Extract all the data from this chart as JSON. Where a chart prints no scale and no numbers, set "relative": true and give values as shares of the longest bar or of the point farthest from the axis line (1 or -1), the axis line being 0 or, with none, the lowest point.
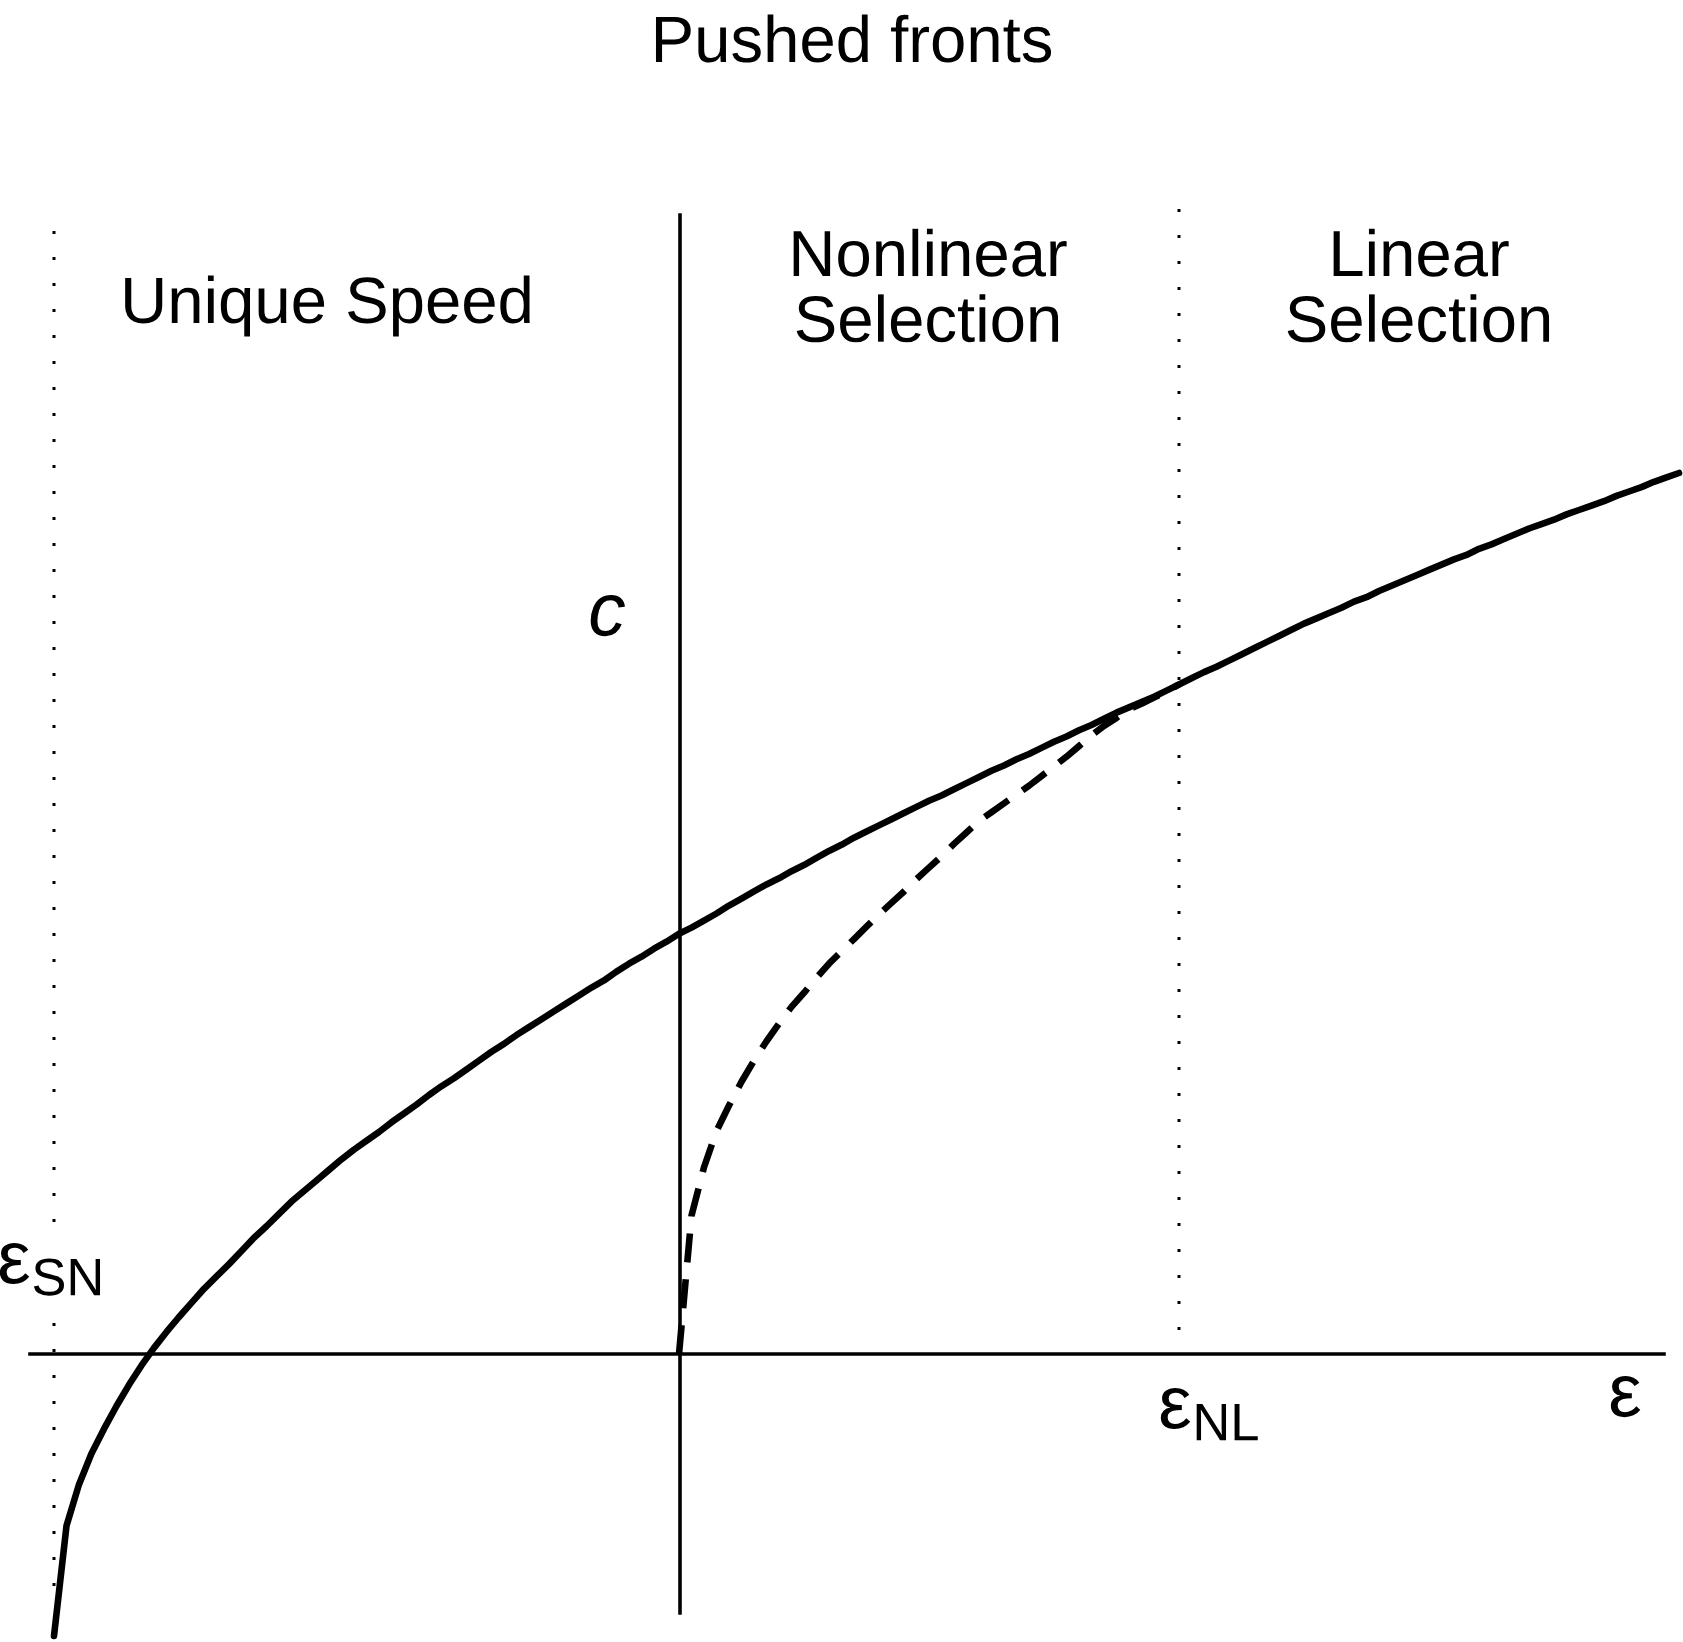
{
  "chart_data": {
    "type": "line",
    "title": "Pushed fronts",
    "xlabel": "ε",
    "ylabel": "c",
    "relative": true,
    "categories": [
      null,
      null,
      null,
      null,
      null,
      null,
      null,
      null,
      null,
      null,
      null,
      null,
      null,
      null,
      null,
      null,
      null,
      null,
      null,
      null,
      null,
      null,
      null,
      null,
      null,
      null,
      null,
      null,
      null,
      null,
      null,
      null,
      null,
      null,
      null,
      null,
      null,
      null,
      null,
      null,
      null,
      null,
      null,
      null,
      null,
      null,
      null,
      null,
      null,
      null,
      null,
      null,
      null,
      null,
      null,
      null,
      null,
      null,
      null,
      null,
      null,
      null,
      null,
      null,
      null,
      null,
      null,
      null,
      null,
      null,
      null,
      null,
      null,
      null,
      null,
      null,
      null,
      null,
      null,
      null,
      null,
      null,
      null,
      null,
      null,
      null,
      null,
      null,
      null,
      null,
      null,
      null,
      null,
      null,
      null,
      null,
      null,
      null,
      null,
      null,
      null,
      null,
      null,
      null,
      null,
      null,
      null,
      null,
      null,
      null,
      null,
      null,
      null,
      null,
      null,
      null,
      null,
      null,
      null,
      null,
      null,
      null,
      null,
      null,
      null,
      null,
      null,
      null,
      null,
      null,
      null
    ],
    "series": [
      {
        "color": "#000000",
        "line_style": "solid",
        "values": [
          -0.32,
          -0.195,
          -0.148,
          -0.113,
          -0.085,
          -0.059,
          -0.035,
          -0.013,
          0.007,
          0.025,
          0.042,
          0.058,
          0.074,
          0.088,
          0.102,
          0.117,
          0.132,
          0.145,
          0.159,
          0.173,
          0.185,
          0.197,
          0.209,
          0.221,
          0.232,
          0.242,
          0.252,
          0.263,
          0.273,
          0.283,
          0.294,
          0.304,
          0.313,
          0.323,
          0.333,
          0.343,
          0.352,
          0.362,
          0.371,
          0.38,
          0.389,
          0.398,
          0.407,
          0.416,
          0.424,
          0.434,
          0.443,
          0.451,
          0.46,
          0.468,
          0.477,
          0.484,
          0.492,
          0.5,
          0.509,
          0.517,
          0.525,
          0.533,
          0.54,
          0.548,
          0.555,
          0.563,
          0.571,
          0.578,
          0.586,
          0.593,
          0.6,
          0.607,
          0.614,
          0.621,
          0.628,
          0.634,
          0.641,
          0.648,
          0.655,
          0.662,
          0.668,
          0.675,
          0.681,
          0.688,
          0.695,
          0.701,
          0.708,
          0.714,
          0.721,
          0.728,
          0.734,
          0.74,
          0.746,
          0.753,
          0.76,
          0.767,
          0.774,
          0.78,
          0.787,
          0.794,
          0.801,
          0.808,
          0.815,
          0.822,
          0.829,
          0.835,
          0.841,
          0.847,
          0.854,
          0.859,
          0.866,
          0.872,
          0.878,
          0.884,
          0.89,
          0.896,
          0.902,
          0.907,
          0.914,
          0.919,
          0.925,
          0.931,
          0.937,
          0.942,
          0.947,
          0.953,
          0.958,
          0.963,
          0.968,
          0.974,
          0.979,
          0.984,
          0.99,
          0.995,
          1.0
        ]
      },
      {
        "color": "#000000",
        "line_style": "dashed",
        "values": [
          null,
          null,
          null,
          null,
          null,
          null,
          null,
          null,
          null,
          null,
          null,
          null,
          null,
          null,
          null,
          null,
          null,
          null,
          null,
          null,
          null,
          null,
          null,
          null,
          null,
          null,
          null,
          null,
          null,
          null,
          null,
          null,
          null,
          null,
          null,
          null,
          null,
          null,
          null,
          null,
          null,
          null,
          null,
          null,
          null,
          null,
          null,
          null,
          null,
          null,
          0,
          0.157,
          0.212,
          0.253,
          0.282,
          0.309,
          0.333,
          0.355,
          0.375,
          0.394,
          0.41,
          0.427,
          0.443,
          0.457,
          0.471,
          0.485,
          0.499,
          0.512,
          0.525,
          0.539,
          0.552,
          0.565,
          0.579,
          0.592,
          0.605,
          0.615,
          0.625,
          0.635,
          0.645,
          0.656,
          0.667,
          0.678,
          0.69,
          0.702,
          0.713,
          0.722,
          0.732,
          0.738,
          0.745,
          0.752,
          0.76,
          null,
          null,
          null,
          null,
          null,
          null,
          null,
          null,
          null,
          null,
          null,
          null,
          null,
          null,
          null,
          null,
          null,
          null,
          null,
          null,
          null,
          null,
          null,
          null,
          null,
          null,
          null,
          null,
          null,
          null,
          null,
          null,
          null,
          null,
          null,
          null,
          null,
          null,
          null,
          null
        ]
      }
    ],
    "annotations": [
      "Unique Speed",
      "Nonlinear\nSelection",
      "Linear\nSelection",
      "ε$_{SN}$",
      "ε$_{NL}$"
    ]
  }
}
